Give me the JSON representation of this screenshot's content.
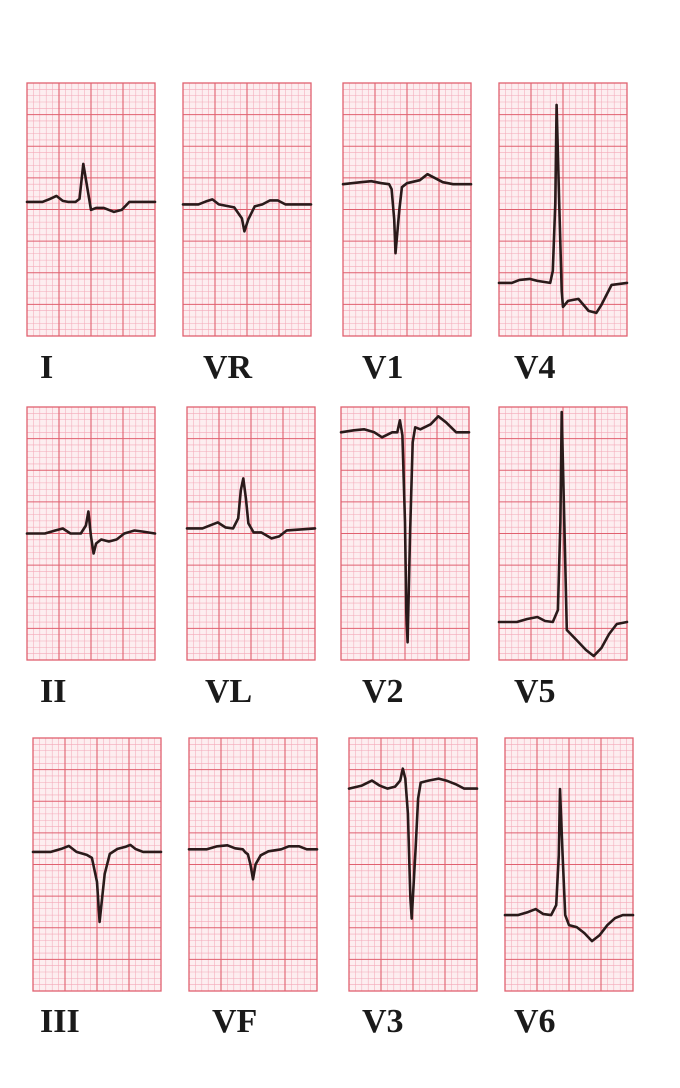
{
  "figure": {
    "type": "12-lead ECG",
    "grid_color": "#e0606f",
    "background_color": "#fdeef0",
    "trace_color": "#2a1a1a"
  },
  "leads": [
    {
      "id": "I",
      "label": "I",
      "morphology": "upright-qrs"
    },
    {
      "id": "VR",
      "label": "VR",
      "morphology": "negative-qrs"
    },
    {
      "id": "V1",
      "label": "V1",
      "morphology": "deep-s"
    },
    {
      "id": "V4",
      "label": "V4",
      "morphology": "tall-r-inverted-t"
    },
    {
      "id": "II",
      "label": "II",
      "morphology": "biphasic-qrs"
    },
    {
      "id": "VL",
      "label": "VL",
      "morphology": "upright-qrs"
    },
    {
      "id": "V2",
      "label": "V2",
      "morphology": "very-deep-s"
    },
    {
      "id": "V5",
      "label": "V5",
      "morphology": "tall-r-inverted-t"
    },
    {
      "id": "III",
      "label": "III",
      "morphology": "negative-qrs"
    },
    {
      "id": "VF",
      "label": "VF",
      "morphology": "small-negative-qrs"
    },
    {
      "id": "V3",
      "label": "V3",
      "morphology": "rs-complex"
    },
    {
      "id": "V6",
      "label": "V6",
      "morphology": "tall-r-inverted-t"
    }
  ]
}
